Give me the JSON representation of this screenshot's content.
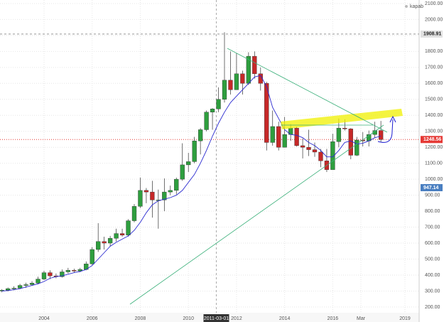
{
  "chart_data": {
    "type": "candlestick",
    "legend_text": "kapab",
    "x": [
      2002.25,
      2002.5,
      2002.75,
      2003.0,
      2003.25,
      2003.5,
      2003.75,
      2004.0,
      2004.25,
      2004.5,
      2004.75,
      2005.0,
      2005.25,
      2005.5,
      2005.75,
      2006.0,
      2006.25,
      2006.5,
      2006.75,
      2007.0,
      2007.25,
      2007.5,
      2007.75,
      2008.0,
      2008.25,
      2008.5,
      2008.75,
      2009.0,
      2009.25,
      2009.5,
      2009.75,
      2010.0,
      2010.25,
      2010.5,
      2010.75,
      2011.0,
      2011.25,
      2011.5,
      2011.75,
      2012.0,
      2012.25,
      2012.5,
      2012.75,
      2013.0,
      2013.25,
      2013.5,
      2013.75,
      2014.0,
      2014.25,
      2014.5,
      2014.75,
      2015.0,
      2015.25,
      2015.5,
      2015.75,
      2016.0,
      2016.25,
      2016.5,
      2016.75,
      2017.0,
      2017.25,
      2017.5,
      2017.75,
      2018.0
    ],
    "open": [
      300,
      305,
      315,
      318,
      335,
      340,
      350,
      375,
      415,
      395,
      390,
      420,
      430,
      425,
      435,
      470,
      560,
      610,
      600,
      630,
      660,
      650,
      740,
      830,
      930,
      920,
      870,
      870,
      920,
      930,
      1000,
      1090,
      1110,
      1240,
      1310,
      1420,
      1440,
      1500,
      1620,
      1560,
      1660,
      1600,
      1770,
      1660,
      1600,
      1230,
      1330,
      1200,
      1280,
      1320,
      1210,
      1200,
      1185,
      1170,
      1115,
      1060,
      1235,
      1320,
      1315,
      1150,
      1245,
      1240,
      1280,
      1305
    ],
    "high": [
      312,
      322,
      330,
      345,
      352,
      362,
      390,
      427,
      430,
      410,
      435,
      445,
      440,
      445,
      485,
      575,
      725,
      640,
      645,
      690,
      690,
      750,
      845,
      1010,
      945,
      990,
      935,
      1005,
      960,
      1010,
      1225,
      1165,
      1265,
      1320,
      1430,
      1445,
      1575,
      1920,
      1800,
      1790,
      1680,
      1795,
      1800,
      1700,
      1610,
      1430,
      1360,
      1390,
      1345,
      1330,
      1255,
      1310,
      1230,
      1190,
      1190,
      1285,
      1380,
      1375,
      1320,
      1265,
      1295,
      1305,
      1360,
      1365
    ],
    "low": [
      292,
      298,
      305,
      312,
      320,
      335,
      342,
      368,
      375,
      380,
      385,
      410,
      415,
      418,
      430,
      465,
      545,
      560,
      580,
      610,
      640,
      640,
      730,
      820,
      850,
      760,
      690,
      800,
      900,
      905,
      990,
      1045,
      1100,
      1155,
      1300,
      1310,
      1420,
      1480,
      1530,
      1560,
      1530,
      1590,
      1630,
      1555,
      1180,
      1210,
      1180,
      1200,
      1240,
      1205,
      1130,
      1145,
      1140,
      1075,
      1045,
      1060,
      1200,
      1305,
      1125,
      1145,
      1205,
      1205,
      1260,
      1235
    ],
    "close": [
      305,
      315,
      318,
      335,
      340,
      350,
      375,
      415,
      395,
      390,
      420,
      430,
      425,
      435,
      470,
      560,
      610,
      600,
      630,
      660,
      650,
      740,
      830,
      930,
      920,
      870,
      870,
      920,
      930,
      1000,
      1090,
      1110,
      1240,
      1310,
      1420,
      1440,
      1500,
      1620,
      1560,
      1660,
      1600,
      1770,
      1660,
      1600,
      1230,
      1330,
      1200,
      1280,
      1320,
      1210,
      1200,
      1185,
      1170,
      1115,
      1060,
      1235,
      1320,
      1315,
      1150,
      1245,
      1240,
      1280,
      1305,
      1248.56
    ],
    "up_color": "#2e9e3e",
    "down_color": "#c62828",
    "moving_average": {
      "color": "#2a2ad0",
      "values": [
        300,
        303,
        308,
        315,
        325,
        335,
        345,
        360,
        380,
        390,
        395,
        405,
        415,
        422,
        435,
        460,
        500,
        540,
        580,
        605,
        625,
        645,
        680,
        730,
        790,
        840,
        865,
        875,
        885,
        900,
        930,
        980,
        1030,
        1100,
        1180,
        1270,
        1350,
        1420,
        1480,
        1520,
        1560,
        1600,
        1640,
        1650,
        1580,
        1450,
        1380,
        1310,
        1280,
        1275,
        1260,
        1230,
        1210,
        1180,
        1140,
        1140,
        1180,
        1230,
        1240,
        1220,
        1225,
        1240,
        1260,
        1270
      ]
    },
    "xlim": [
      2002.17,
      2019.59
    ],
    "ylim": [
      164,
      2122
    ],
    "xticks": [
      2004,
      2006,
      2008,
      2010,
      2012,
      2014,
      2016,
      {
        "value": 2017.17,
        "label": "Mar"
      },
      2019
    ],
    "yticks": [
      {
        "value": 200,
        "label": "200.00"
      },
      {
        "value": 300,
        "label": "300.00"
      },
      {
        "value": 400,
        "label": "400.00"
      },
      {
        "value": 500,
        "label": "500.00"
      },
      {
        "value": 600,
        "label": "600.00"
      },
      {
        "value": 700,
        "label": "700.00"
      },
      {
        "value": 800,
        "label": "800.00"
      },
      {
        "value": 900,
        "label": "900.00"
      },
      {
        "value": 1000,
        "label": "1000.00"
      },
      {
        "value": 1100,
        "label": "1100.00"
      },
      {
        "value": 1200,
        "label": "1200.00"
      },
      {
        "value": 1300,
        "label": "1300.00"
      },
      {
        "value": 1400,
        "label": "1400.00"
      },
      {
        "value": 1500,
        "label": "1500.00"
      },
      {
        "value": 1600,
        "label": "1600.00"
      },
      {
        "value": 1700,
        "label": "1700.00"
      },
      {
        "value": 1800,
        "label": "1800.00"
      },
      {
        "value": 1900,
        "label": "1900.00"
      },
      {
        "value": 2000,
        "label": "2000.00"
      },
      {
        "value": 2100,
        "label": "2100.00"
      }
    ],
    "grid": true,
    "crosshair_x": {
      "value": 2011.16,
      "label": "2011-03-01"
    },
    "price_lines": [
      {
        "value": 1908.91,
        "color": "#999999",
        "tag_color": "#e0e0e0",
        "text_color": "#222222"
      },
      {
        "value": 1248.56,
        "color": "#e53935",
        "tag_color": "#e53935",
        "text_color": "#ffffff"
      },
      {
        "value": 947.14,
        "color": null,
        "tag_color": "#4a7fc1",
        "text_color": "#ffffff"
      }
    ]
  }
}
